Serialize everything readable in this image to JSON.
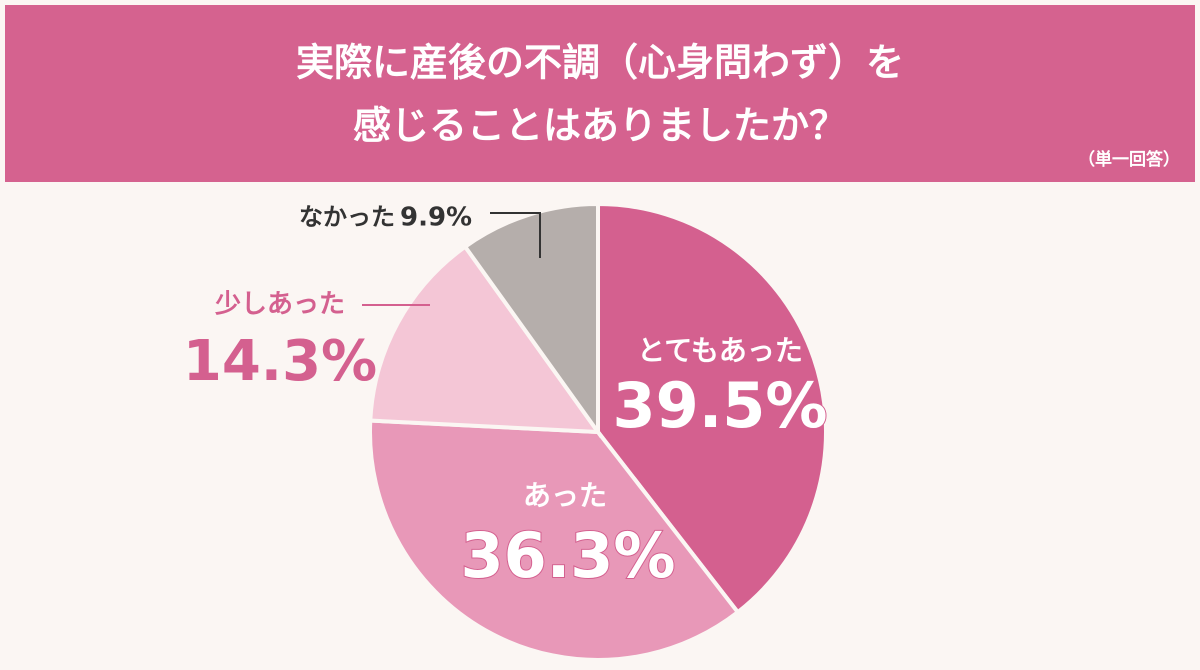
{
  "chart_data": {
    "type": "pie",
    "title": [
      "実際に産後の不調（心身問わず）を",
      "感じることはありましたか？"
    ],
    "subtitle": "（単一回答）",
    "categories": [
      "とてもあった",
      "あった",
      "少しあった",
      "なかった"
    ],
    "values": [
      39.5,
      36.3,
      14.3,
      9.9
    ],
    "value_labels": [
      "39.5%",
      "36.3%",
      "14.3%",
      "9.9%"
    ],
    "colors": [
      "#d4608f",
      "#e898b8",
      "#f4c6d6",
      "#b5aeab"
    ]
  }
}
